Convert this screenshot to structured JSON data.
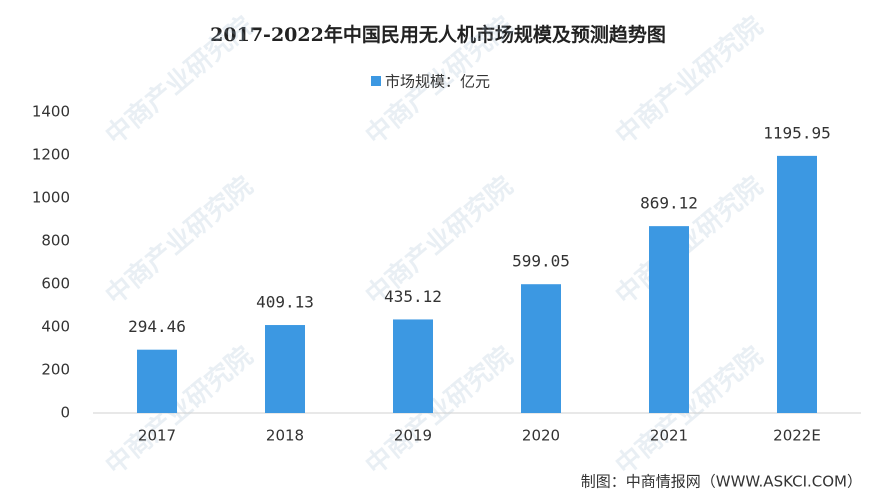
{
  "chart_data": {
    "type": "bar",
    "title": "2017-2022年中国民用无人机市场规模及预测趋势图",
    "legend_label": "市场规模：亿元",
    "categories": [
      "2017",
      "2018",
      "2019",
      "2020",
      "2021",
      "2022E"
    ],
    "values": [
      294.46,
      409.13,
      435.12,
      599.05,
      869.12,
      1195.95
    ],
    "color": "#3c98e2",
    "ylim": [
      0,
      1400
    ],
    "yticks": [
      0,
      200,
      400,
      600,
      800,
      1000,
      1200,
      1400
    ],
    "grid": false,
    "source": "制图：中商情报网（WWW.ASKCI.COM）",
    "watermark": "中商产业研究院"
  }
}
